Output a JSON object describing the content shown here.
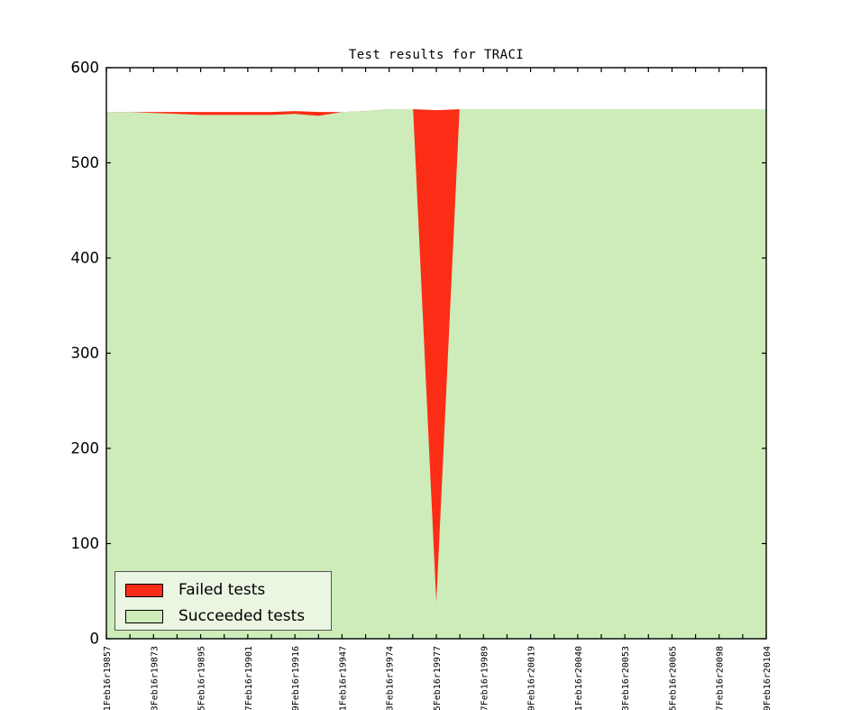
{
  "figure": {
    "title": "Test results for TRACI"
  },
  "legend": {
    "items": [
      {
        "label": "Failed tests",
        "color": "#fc2d16"
      },
      {
        "label": "Succeeded tests",
        "color": "#cdecb9"
      }
    ]
  },
  "chart_data": {
    "type": "area",
    "stacked": true,
    "title": "Test results for TRACI",
    "xlabel": "",
    "ylabel": "",
    "ylim": [
      0,
      600
    ],
    "yticks": [
      0,
      100,
      200,
      300,
      400,
      500,
      600
    ],
    "grid": false,
    "legend_position": "lower left",
    "n_points": 29,
    "x_tick_labels": [
      "1Feb16r19857",
      "3Feb16r19873",
      "5Feb16r19895",
      "7Feb16r19901",
      "9Feb16r19916",
      "1Feb16r19947",
      "3Feb16r19974",
      "5Feb16r19977",
      "7Feb16r19989",
      "9Feb16r20019",
      "1Feb16r20040",
      "3Feb16r20053",
      "5Feb16r20065",
      "7Feb16r20098",
      "9Feb16r20104"
    ],
    "x_labels_every_other_tick": true,
    "series": [
      {
        "name": "Failed tests",
        "color": "#fc2d16",
        "stack_order": "top",
        "values": [
          0,
          0,
          1,
          2,
          3,
          3,
          3,
          3,
          3,
          4,
          0,
          0,
          0,
          0,
          525,
          0,
          0,
          0,
          0,
          0,
          0,
          0,
          0,
          0,
          0,
          0,
          0,
          0,
          0
        ]
      },
      {
        "name": "Succeeded tests",
        "color": "#cdecb9",
        "stack_order": "bottom",
        "values": [
          553,
          553,
          552,
          551,
          550,
          550,
          550,
          550,
          551,
          549,
          553,
          554,
          556,
          556,
          30,
          556,
          556,
          556,
          556,
          556,
          556,
          556,
          556,
          556,
          556,
          556,
          556,
          556,
          556
        ]
      }
    ],
    "colors": {
      "background": "#ffffff",
      "axis": "#000000",
      "legend_bg": "#eaf5e2",
      "tick_label": "#000000"
    }
  }
}
